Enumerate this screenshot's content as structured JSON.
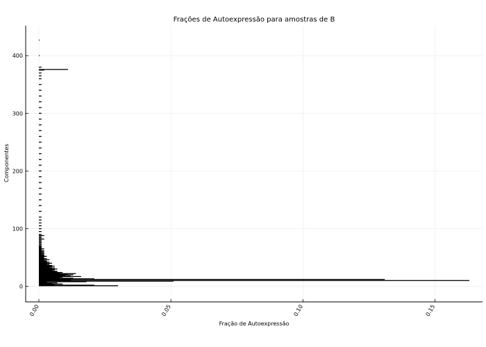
{
  "chart_data": {
    "type": "bar",
    "orientation": "horizontal",
    "title": "Frações de Autoexpressão para amostras de B",
    "xlabel": "Fração de Autoexpressão",
    "ylabel": "Componentes",
    "xlim": [
      -0.005,
      0.168
    ],
    "ylim": [
      -27,
      452
    ],
    "xticks": [
      0.0,
      0.05,
      0.1,
      0.15
    ],
    "xtick_labels": [
      "0.00",
      "0.05",
      "0.10",
      "0.15"
    ],
    "yticks": [
      0,
      100,
      200,
      300,
      400
    ],
    "ytick_labels": [
      "0",
      "100",
      "200",
      "300",
      "400"
    ],
    "grid": true,
    "legend": "none",
    "bar_color": "#000000",
    "series": [
      {
        "x": [
          1,
          2,
          3,
          4,
          5,
          6,
          7,
          8,
          9,
          10,
          11,
          12,
          13,
          14,
          15,
          16,
          17,
          18,
          19,
          20,
          21,
          22,
          23,
          24,
          25,
          26,
          27,
          28,
          29,
          30,
          31,
          32,
          33,
          34,
          35,
          36,
          37,
          38,
          39,
          40,
          41,
          42,
          43,
          44,
          45,
          46,
          47,
          48,
          49,
          50,
          51,
          52,
          53,
          54,
          55,
          56,
          57,
          58,
          59,
          60,
          61,
          62,
          63,
          64,
          65,
          66,
          67,
          68,
          69,
          70,
          72,
          74,
          76,
          78,
          80,
          82,
          84,
          86,
          88,
          90,
          95,
          100,
          105,
          110,
          115,
          120,
          130,
          140,
          150,
          160,
          170,
          180,
          190,
          200,
          210,
          220,
          230,
          240,
          250,
          260,
          270,
          280,
          290,
          300,
          310,
          320,
          330,
          340,
          350,
          360,
          365,
          370,
          375,
          376,
          380,
          400,
          427
        ],
        "values": [
          0.03,
          0.021,
          0.006,
          0.009,
          0.005,
          0.007,
          0.003,
          0.018,
          0.051,
          0.163,
          0.012,
          0.131,
          0.021,
          0.013,
          0.008,
          0.009,
          0.016,
          0.012,
          0.01,
          0.013,
          0.011,
          0.014,
          0.008,
          0.009,
          0.007,
          0.007,
          0.006,
          0.005,
          0.006,
          0.007,
          0.005,
          0.006,
          0.004,
          0.005,
          0.006,
          0.005,
          0.004,
          0.003,
          0.004,
          0.005,
          0.003,
          0.004,
          0.003,
          0.003,
          0.002,
          0.004,
          0.002,
          0.003,
          0.002,
          0.002,
          0.002,
          0.003,
          0.002,
          0.002,
          0.002,
          0.001,
          0.002,
          0.002,
          0.001,
          0.002,
          0.001,
          0.002,
          0.001,
          0.001,
          0.002,
          0.001,
          0.001,
          0.001,
          0.001,
          0.001,
          0.001,
          0.001,
          0.001,
          0.001,
          0.001,
          0.002,
          0.001,
          0.001,
          0.002,
          0.001,
          0.001,
          0.001,
          0.001,
          0.001,
          0.001,
          0.001,
          0.001,
          0.001,
          0.001,
          0.001,
          0.001,
          0.001,
          0.001,
          0.001,
          0.001,
          0.001,
          0.001,
          0.001,
          0.001,
          0.001,
          0.001,
          0.001,
          0.001,
          0.001,
          0.001,
          0.001,
          0.001,
          0.001,
          0.001,
          0.001,
          0.001,
          0.001,
          0.002,
          0.011,
          0.001,
          0.0003,
          0.0003
        ]
      }
    ]
  }
}
